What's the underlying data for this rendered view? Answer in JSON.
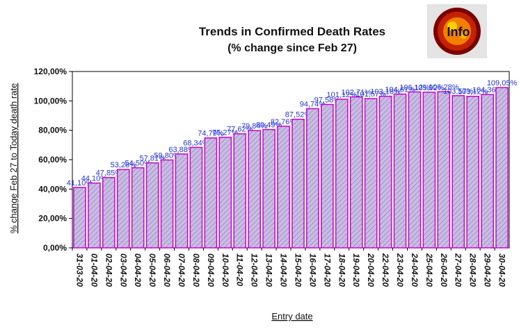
{
  "chart_data": {
    "type": "bar",
    "title": "Trends in Confirmed Death Rates",
    "subtitle": "(% change since Feb 27)",
    "xlabel": "Entry date",
    "ylabel": "% change Feb 27 to Today death rate",
    "ylim": [
      0,
      120
    ],
    "yticks": [
      "0,00%",
      "20,00%",
      "40,00%",
      "60,00%",
      "80,00%",
      "100,00%",
      "120,00%"
    ],
    "grid": false,
    "legend": "none",
    "bar_color": "#c7b6e0",
    "bar_edge_color": "#cc00cc",
    "label_color": "#2233dd",
    "categories": [
      "31-03-20",
      "01-04-20",
      "02-04-20",
      "03-04-20",
      "04-04-20",
      "05-04-20",
      "06-04-20",
      "07-04-20",
      "08-04-20",
      "09-04-20",
      "10-04-20",
      "11-04-20",
      "12-04-20",
      "13-04-20",
      "14-04-20",
      "15-04-20",
      "16-04-20",
      "17-04-20",
      "18-04-20",
      "19-04-20",
      "20-04-20",
      "22-04-20",
      "23-04-20",
      "24-04-20",
      "25-04-20",
      "26-04-20",
      "27-04-20",
      "28-04-20",
      "29-04-20",
      "30-04-20"
    ],
    "values": [
      41.1,
      44.1,
      47.85,
      53.28,
      54.5,
      57.81,
      59.8,
      63.88,
      68.34,
      74.79,
      75.27,
      77.62,
      79.84,
      80.49,
      82.76,
      87.52,
      94.74,
      97.58,
      101.12,
      102.71,
      101.57,
      103.16,
      104.61,
      106.12,
      105.92,
      106.28,
      103.57,
      103.12,
      104.36,
      109.05
    ],
    "data_labels": [
      "41,10%",
      "44,10%",
      "47,85%",
      "53,28%",
      "54,50%",
      "57,81%",
      "59,80%",
      "63,88%",
      "68,34%",
      "74,79%",
      "75,27%",
      "77,62%",
      "79,84%",
      "80,49%",
      "82,76%",
      "87,52%",
      "94,74%",
      "97,58%",
      "101,12%",
      "102,71%",
      "101,57%",
      "103,16%",
      "104,61%",
      "106,12%",
      "105,92%",
      "106,28%",
      "103,57%",
      "103,12%",
      "104,36%",
      "109,05%"
    ]
  },
  "logo": {
    "text": "Info",
    "icon": "globe-logo-icon"
  }
}
